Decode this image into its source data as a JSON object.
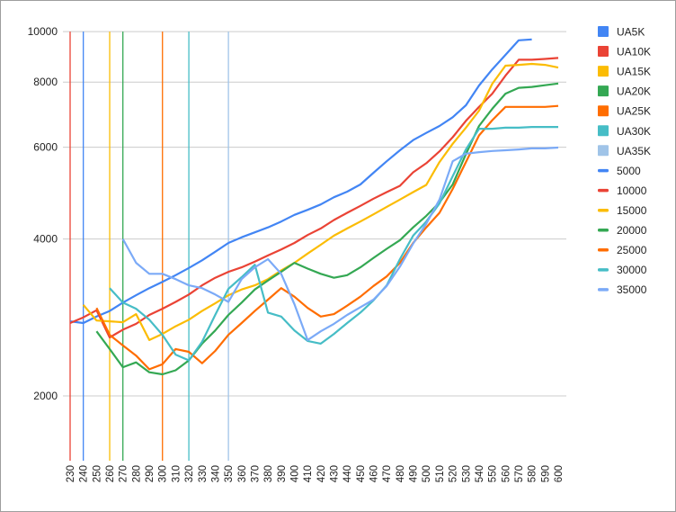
{
  "chart_data": {
    "type": "line",
    "title": "",
    "xlabel": "",
    "ylabel": "",
    "y_scale": "log",
    "ylim": [
      1500,
      10000
    ],
    "y_ticks": [
      2000,
      4000,
      6000,
      8000,
      10000
    ],
    "grid": true,
    "legend_position": "right",
    "categories": [
      230,
      240,
      250,
      260,
      270,
      280,
      290,
      300,
      310,
      320,
      330,
      340,
      350,
      360,
      370,
      380,
      390,
      400,
      410,
      420,
      430,
      440,
      450,
      460,
      470,
      480,
      490,
      500,
      510,
      520,
      530,
      540,
      550,
      560,
      570,
      580,
      590,
      600
    ],
    "vertical_markers": [
      {
        "name": "UA5K",
        "x": 240,
        "color": "#4285f4"
      },
      {
        "name": "UA10K",
        "x": 230,
        "color": "#ea4335"
      },
      {
        "name": "UA15K",
        "x": 260,
        "color": "#fbbc04"
      },
      {
        "name": "UA20K",
        "x": 270,
        "color": "#34a853"
      },
      {
        "name": "UA25K",
        "x": 300,
        "color": "#ff6d01"
      },
      {
        "name": "UA30K",
        "x": 320,
        "color": "#46bdc6"
      },
      {
        "name": "UA35K",
        "x": 350,
        "color": "#a0c4e8"
      }
    ],
    "series": [
      {
        "name": "5000",
        "color": "#4285f4",
        "start": 230,
        "values": [
          2780,
          2760,
          2840,
          2910,
          3020,
          3120,
          3220,
          3310,
          3410,
          3520,
          3640,
          3780,
          3930,
          4030,
          4120,
          4210,
          4320,
          4450,
          4550,
          4660,
          4810,
          4930,
          5090,
          5360,
          5640,
          5920,
          6190,
          6390,
          6590,
          6850,
          7220,
          7880,
          8460,
          9020,
          9620,
          9660
        ]
      },
      {
        "name": "10000",
        "color": "#ea4335",
        "start": 230,
        "values": [
          2760,
          2830,
          2920,
          2590,
          2680,
          2750,
          2860,
          2940,
          3030,
          3130,
          3260,
          3370,
          3460,
          3530,
          3620,
          3720,
          3820,
          3930,
          4070,
          4190,
          4350,
          4490,
          4630,
          4780,
          4920,
          5060,
          5370,
          5590,
          5890,
          6270,
          6740,
          7170,
          7600,
          8230,
          8830,
          8830,
          8860,
          8900
        ]
      },
      {
        "name": "15000",
        "color": "#fbbc04",
        "start": 240,
        "values": [
          2990,
          2790,
          2780,
          2770,
          2870,
          2560,
          2630,
          2720,
          2800,
          2910,
          3010,
          3120,
          3200,
          3260,
          3350,
          3480,
          3600,
          3750,
          3900,
          4060,
          4190,
          4320,
          4460,
          4610,
          4760,
          4920,
          5080,
          5620,
          6090,
          6540,
          7050,
          7940,
          8600,
          8630,
          8670,
          8630,
          8530
        ]
      },
      {
        "name": "20000",
        "color": "#34a853",
        "start": 250,
        "values": [
          2660,
          2460,
          2270,
          2320,
          2220,
          2200,
          2240,
          2340,
          2520,
          2670,
          2860,
          3020,
          3200,
          3330,
          3460,
          3600,
          3510,
          3430,
          3370,
          3410,
          3530,
          3680,
          3830,
          3980,
          4210,
          4430,
          4700,
          5090,
          5820,
          6590,
          7110,
          7600,
          7800,
          7830,
          7890,
          7950
        ]
      },
      {
        "name": "25000",
        "color": "#ff6d01",
        "start": 250,
        "values": [
          2950,
          2620,
          2500,
          2390,
          2250,
          2300,
          2460,
          2430,
          2310,
          2440,
          2620,
          2760,
          2910,
          3060,
          3220,
          3100,
          2950,
          2840,
          2870,
          2980,
          3100,
          3250,
          3390,
          3600,
          3930,
          4210,
          4490,
          4990,
          5620,
          6320,
          6760,
          7170,
          7170,
          7170,
          7170,
          7200
        ]
      },
      {
        "name": "30000",
        "color": "#46bdc6",
        "start": 260,
        "values": [
          3220,
          3020,
          2940,
          2800,
          2620,
          2400,
          2340,
          2540,
          2860,
          3210,
          3380,
          3570,
          2890,
          2840,
          2670,
          2550,
          2520,
          2630,
          2760,
          2890,
          3050,
          3260,
          3660,
          4060,
          4320,
          4680,
          5280,
          5940,
          6510,
          6510,
          6540,
          6540,
          6560,
          6560,
          6560
        ]
      },
      {
        "name": "35000",
        "color": "#7baaf7",
        "start": 270,
        "values": [
          4000,
          3600,
          3430,
          3430,
          3350,
          3260,
          3220,
          3130,
          3030,
          3350,
          3530,
          3660,
          3430,
          3000,
          2560,
          2660,
          2750,
          2860,
          2960,
          3060,
          3250,
          3540,
          3920,
          4280,
          4760,
          5640,
          5830,
          5870,
          5900,
          5920,
          5940,
          5970,
          5970,
          5990
        ]
      }
    ],
    "legend": [
      {
        "label": "UA5K",
        "color": "#4285f4",
        "kind": "box"
      },
      {
        "label": "UA10K",
        "color": "#ea4335",
        "kind": "box"
      },
      {
        "label": "UA15K",
        "color": "#fbbc04",
        "kind": "box"
      },
      {
        "label": "UA20K",
        "color": "#34a853",
        "kind": "box"
      },
      {
        "label": "UA25K",
        "color": "#ff6d01",
        "kind": "box"
      },
      {
        "label": "UA30K",
        "color": "#46bdc6",
        "kind": "box"
      },
      {
        "label": "UA35K",
        "color": "#a0c4e8",
        "kind": "box"
      },
      {
        "label": "5000",
        "color": "#4285f4",
        "kind": "line"
      },
      {
        "label": "10000",
        "color": "#ea4335",
        "kind": "line"
      },
      {
        "label": "15000",
        "color": "#fbbc04",
        "kind": "line"
      },
      {
        "label": "20000",
        "color": "#34a853",
        "kind": "line"
      },
      {
        "label": "25000",
        "color": "#ff6d01",
        "kind": "line"
      },
      {
        "label": "30000",
        "color": "#46bdc6",
        "kind": "line"
      },
      {
        "label": "35000",
        "color": "#7baaf7",
        "kind": "line"
      }
    ]
  }
}
